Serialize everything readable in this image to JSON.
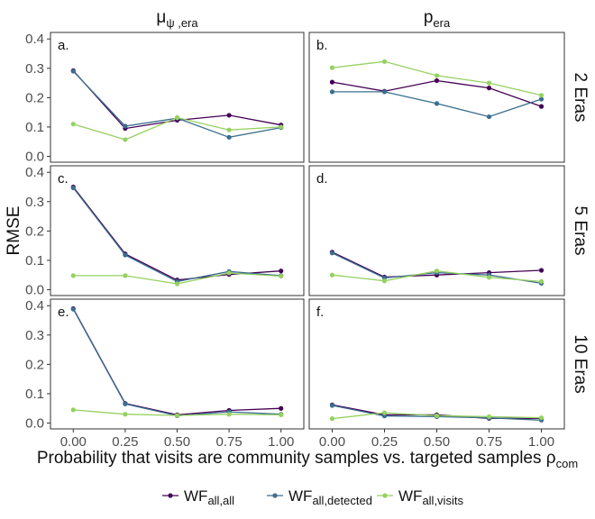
{
  "chart_data": {
    "type": "line",
    "xlabel": "Probability that visits are community samples vs. targeted samples",
    "xlabel_symbol": "ρ",
    "xlabel_symbol_sub": "com",
    "ylabel": "RMSE",
    "x": [
      0,
      0.25,
      0.5,
      0.75,
      1.0
    ],
    "x_tick_labels": [
      "0.00",
      "0.25",
      "0.50",
      "0.75",
      "1.00"
    ],
    "ylim": [
      0,
      0.42
    ],
    "y_ticks": [
      0.0,
      0.1,
      0.2,
      0.3,
      0.4
    ],
    "y_tick_labels": [
      "0.0",
      "0.1",
      "0.2",
      "0.3",
      "0.4"
    ],
    "columns": [
      {
        "label": "μ",
        "sub": "ψ ,era"
      },
      {
        "label": "p",
        "sub": "era"
      }
    ],
    "rows": [
      "2  Eras",
      "5  Eras",
      "10  Eras"
    ],
    "series_meta": [
      {
        "name": "WF",
        "sub": "all,all",
        "color": "#440154"
      },
      {
        "name": "WF",
        "sub": "all,detected",
        "color": "#3b6e8f"
      },
      {
        "name": "WF",
        "sub": "all,visits",
        "color": "#95d160"
      }
    ],
    "legend_position": "bottom",
    "grid": false,
    "panels": [
      {
        "label": "a.",
        "row": 0,
        "col": 0,
        "series": [
          [
            0.292,
            0.095,
            0.123,
            0.14,
            0.107
          ],
          [
            0.29,
            0.103,
            0.13,
            0.065,
            0.098
          ],
          [
            0.11,
            0.057,
            0.132,
            0.09,
            0.1
          ]
        ]
      },
      {
        "label": "b.",
        "row": 0,
        "col": 1,
        "series": [
          [
            0.253,
            0.222,
            0.258,
            0.233,
            0.17
          ],
          [
            0.22,
            0.22,
            0.18,
            0.135,
            0.195
          ],
          [
            0.302,
            0.323,
            0.275,
            0.25,
            0.208
          ]
        ]
      },
      {
        "label": "c.",
        "row": 1,
        "col": 0,
        "series": [
          [
            0.35,
            0.122,
            0.033,
            0.052,
            0.064
          ],
          [
            0.347,
            0.118,
            0.028,
            0.062,
            0.048
          ],
          [
            0.048,
            0.048,
            0.02,
            0.057,
            0.046
          ]
        ]
      },
      {
        "label": "d.",
        "row": 1,
        "col": 1,
        "series": [
          [
            0.128,
            0.043,
            0.05,
            0.058,
            0.066
          ],
          [
            0.125,
            0.04,
            0.058,
            0.05,
            0.022
          ],
          [
            0.05,
            0.03,
            0.064,
            0.042,
            0.028
          ]
        ]
      },
      {
        "label": "e.",
        "row": 2,
        "col": 0,
        "series": [
          [
            0.39,
            0.067,
            0.028,
            0.043,
            0.05
          ],
          [
            0.388,
            0.065,
            0.025,
            0.038,
            0.03
          ],
          [
            0.045,
            0.03,
            0.026,
            0.03,
            0.028
          ]
        ]
      },
      {
        "label": "f.",
        "row": 2,
        "col": 1,
        "series": [
          [
            0.062,
            0.028,
            0.028,
            0.016,
            0.016
          ],
          [
            0.06,
            0.024,
            0.022,
            0.018,
            0.01
          ],
          [
            0.015,
            0.035,
            0.025,
            0.022,
            0.018
          ]
        ]
      }
    ]
  }
}
